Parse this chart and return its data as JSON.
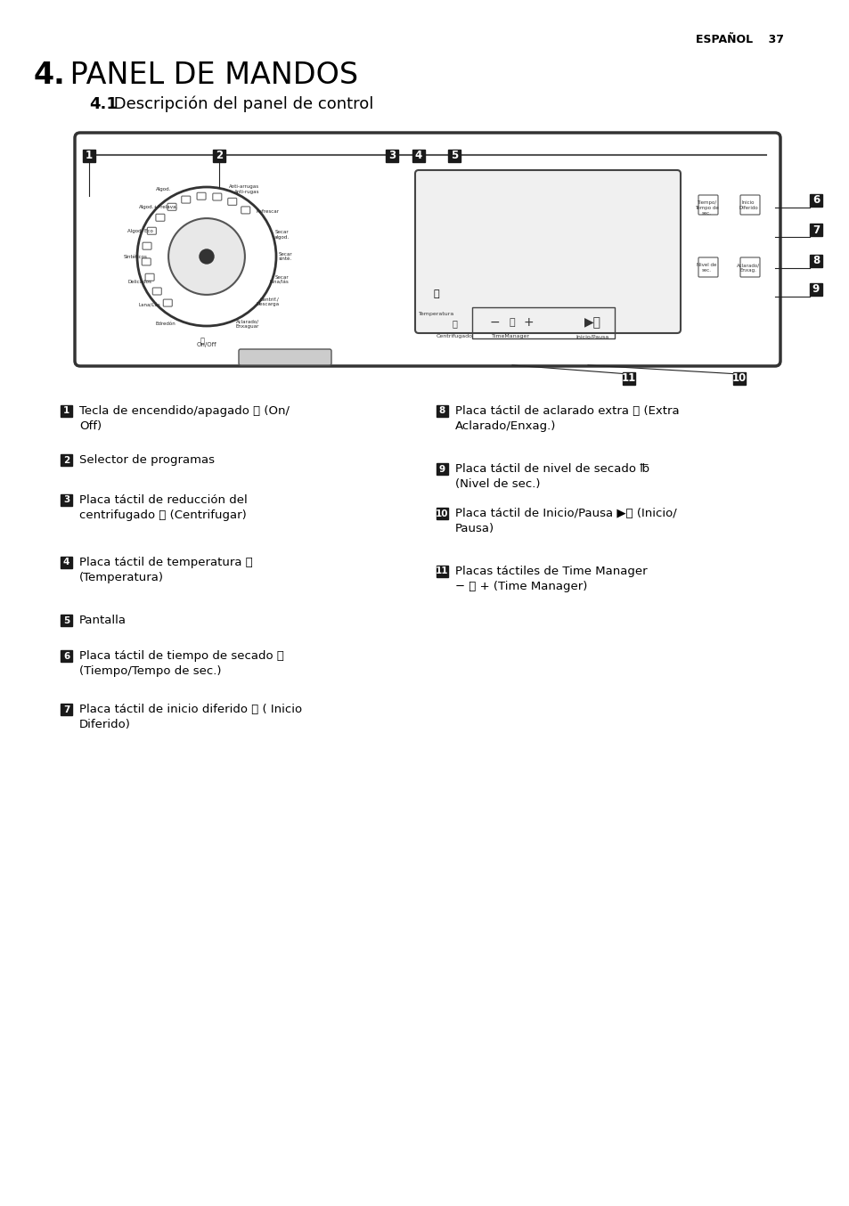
{
  "page_header_right": "ESPAÑOL    37",
  "title_bold": "4.",
  "title_rest": " PANEL DE MANDOS",
  "subtitle_bold": "4.1",
  "subtitle_rest": " Descripción del panel de control",
  "background_color": "#ffffff",
  "text_color": "#000000",
  "label_bg": "#1a1a1a",
  "label_fg": "#ffffff",
  "numbered_labels": [
    "1",
    "2",
    "3",
    "4",
    "5",
    "6",
    "7",
    "8",
    "9",
    "10",
    "11"
  ],
  "items_left": [
    {
      "num": "1",
      "text": "Tecla de encendido/apagado ⓘ (On/\nOff)"
    },
    {
      "num": "2",
      "text": "Selector de programas"
    },
    {
      "num": "3",
      "text": "Placa táctil de reducción del\ncentrifugado Ⓢ (Centrifugar)"
    },
    {
      "num": "4",
      "text": "Placa táctil de temperatura 🌡\n(Temperatura)"
    },
    {
      "num": "5",
      "text": "Pantalla"
    },
    {
      "num": "6",
      "text": "Placa táctil de tiempo de secado ⏱\n(Tiempo/Tempo de sec.)"
    },
    {
      "num": "7",
      "text": "Placa táctil de inicio diferido ⏲ ( Inicio\nDiferido)"
    }
  ],
  "items_right": [
    {
      "num": "8",
      "text": "Placa táctil de aclarado extra ⧮ (Extra\nAclarado/Enxag.)"
    },
    {
      "num": "9",
      "text": "Placa táctil de nivel de secado ℔\n(Nivel de sec.)"
    },
    {
      "num": "10",
      "text": "Placa táctil de Inicio/Pausa ▶⏸ (Inicio/\nPausa)"
    },
    {
      "num": "11",
      "text": "Placas táctiles de Time Manager\n− Ⓢ + (Time Manager)"
    }
  ]
}
